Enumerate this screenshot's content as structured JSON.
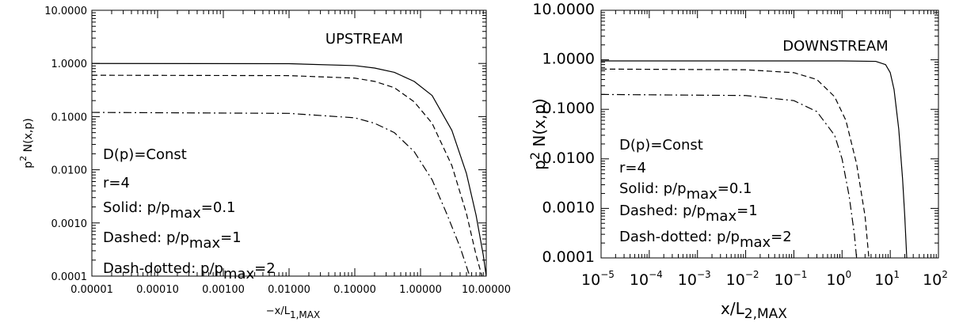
{
  "chart_data": [
    {
      "type": "line",
      "title": "UPSTREAM",
      "xscale": "log",
      "yscale": "log",
      "xlim": [
        1e-05,
        10
      ],
      "ylim": [
        0.0001,
        10
      ],
      "xlabel": {
        "main": "−x/L",
        "sub": "1,MAX"
      },
      "ylabel": {
        "pre": "p",
        "sup": "2",
        "post": " N(x,p)"
      },
      "xticks": [
        "0.00001",
        "0.00010",
        "0.00100",
        "0.01000",
        "0.10000",
        "1.00000",
        "10.00000"
      ],
      "yticks": [
        "0.0001",
        "0.0010",
        "0.0100",
        "0.1000",
        "1.0000",
        "10.0000"
      ],
      "annotations": [
        {
          "text": "D(p)=Const"
        },
        {
          "text": "r=4"
        },
        {
          "pre": "Solid: p/p",
          "sub": "max",
          "post": "=0.1"
        },
        {
          "pre": "Dashed: p/p",
          "sub": "max",
          "post": "=1"
        },
        {
          "pre": "Dash-dotted: p/p",
          "sub": "max",
          "post": "=2"
        }
      ],
      "series": [
        {
          "style": "solid",
          "x": [
            1e-05,
            0.01,
            0.1,
            0.2,
            0.4,
            0.8,
            1.5,
            3,
            5,
            7,
            9,
            10
          ],
          "y": [
            1.0,
            0.99,
            0.91,
            0.82,
            0.68,
            0.46,
            0.25,
            0.055,
            0.0085,
            0.0014,
            0.00025,
            0.0001
          ]
        },
        {
          "style": "dashed",
          "x": [
            1e-05,
            0.01,
            0.1,
            0.2,
            0.4,
            0.8,
            1.5,
            3,
            5,
            7,
            8.6
          ],
          "y": [
            0.6,
            0.59,
            0.53,
            0.46,
            0.35,
            0.19,
            0.075,
            0.012,
            0.0015,
            0.00025,
            0.0001
          ]
        },
        {
          "style": "dashdot",
          "x": [
            1e-05,
            0.01,
            0.1,
            0.2,
            0.4,
            0.8,
            1.5,
            2.5,
            4,
            5.6
          ],
          "y": [
            0.12,
            0.115,
            0.095,
            0.075,
            0.05,
            0.022,
            0.0065,
            0.0015,
            0.00035,
            0.0001
          ]
        }
      ]
    },
    {
      "type": "line",
      "title": "DOWNSTREAM",
      "xscale": "log",
      "yscale": "log",
      "xlim": [
        1e-05,
        100
      ],
      "ylim": [
        0.0001,
        10
      ],
      "xlabel": {
        "main": "x/L",
        "sub": "2,MAX"
      },
      "ylabel": {
        "pre": "p",
        "sup": "2",
        "post": " N(x,p)"
      },
      "xticks": [
        {
          "base": "10",
          "exp": "−5"
        },
        {
          "base": "10",
          "exp": "−4"
        },
        {
          "base": "10",
          "exp": "−3"
        },
        {
          "base": "10",
          "exp": "−2"
        },
        {
          "base": "10",
          "exp": "−1"
        },
        {
          "base": "10",
          "exp": "0"
        },
        {
          "base": "10",
          "exp": "1"
        },
        {
          "base": "10",
          "exp": "2"
        }
      ],
      "yticks": [
        "0.0001",
        "0.0010",
        "0.0100",
        "0.1000",
        "1.0000",
        "10.0000"
      ],
      "annotations": [
        {
          "text": "D(p)=Const"
        },
        {
          "text": "r=4"
        },
        {
          "pre": "Solid: p/p",
          "sub": "max",
          "post": "=0.1"
        },
        {
          "pre": "Dashed: p/p",
          "sub": "max",
          "post": "=1"
        },
        {
          "pre": "Dash-dotted: p/p",
          "sub": "max",
          "post": "=2"
        }
      ],
      "series": [
        {
          "style": "solid",
          "x": [
            1e-05,
            1,
            5,
            8,
            10,
            12,
            15,
            18,
            20,
            22
          ],
          "y": [
            0.95,
            0.95,
            0.93,
            0.8,
            0.55,
            0.25,
            0.04,
            0.004,
            0.0007,
            0.0001
          ]
        },
        {
          "style": "dashed",
          "x": [
            1e-05,
            0.01,
            0.1,
            0.3,
            0.7,
            1.2,
            2,
            3,
            3.6
          ],
          "y": [
            0.65,
            0.63,
            0.55,
            0.4,
            0.18,
            0.06,
            0.008,
            0.0007,
            0.0001
          ]
        },
        {
          "style": "dashdot",
          "x": [
            1e-05,
            0.01,
            0.1,
            0.3,
            0.7,
            1.0,
            1.4,
            1.8,
            2.0
          ],
          "y": [
            0.2,
            0.19,
            0.15,
            0.09,
            0.03,
            0.01,
            0.0018,
            0.0003,
            0.0001
          ]
        }
      ]
    }
  ]
}
